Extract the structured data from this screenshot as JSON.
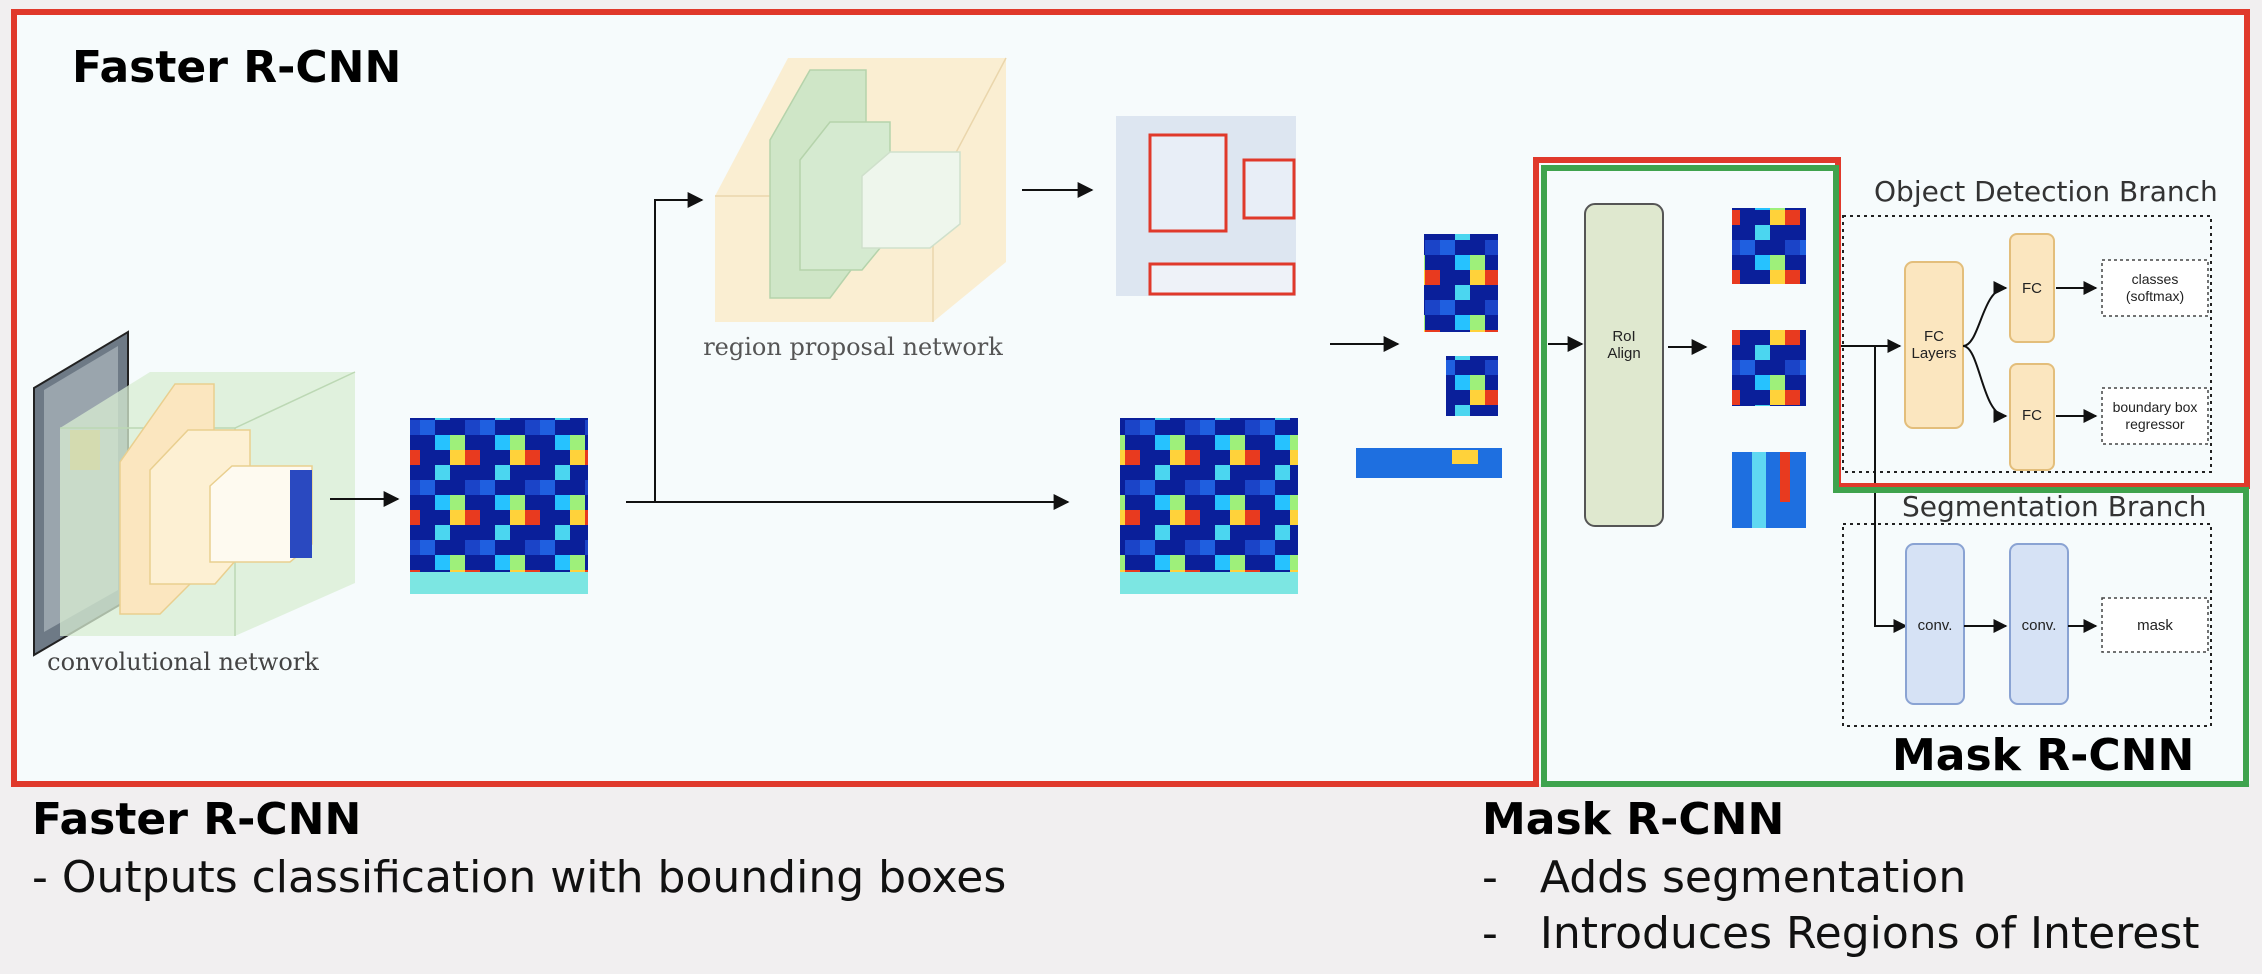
{
  "diagram": {
    "faster_label": "Faster R-CNN",
    "mask_label": "Mask R-CNN",
    "conv_net_label": "convolutional network",
    "rpn_label": "region proposal network",
    "roi_align": [
      "RoI",
      "Align"
    ],
    "object_detection_branch": "Object Detection Branch",
    "segmentation_branch": "Segmentation Branch",
    "fc_layers": [
      "FC",
      "Layers"
    ],
    "fc": "FC",
    "classes": [
      "classes",
      "(softmax)"
    ],
    "bbox_regressor": [
      "boundary box",
      "regressor"
    ],
    "conv": "conv.",
    "mask": "mask"
  },
  "captions": {
    "faster": {
      "title": "Faster R-CNN",
      "line1": "- Outputs classification with bounding boxes"
    },
    "mask": {
      "title": "Mask R-CNN",
      "bullets": [
        "Adds segmentation",
        "Introduces Regions of Interest"
      ]
    }
  },
  "colors": {
    "faster_border": "#e0392b",
    "mask_border": "#3fa34d",
    "heatmap_bg": "#0a1f9a",
    "node_fill_fc": "#fbe6bf",
    "node_fill_conv": "#d6e2f5"
  }
}
